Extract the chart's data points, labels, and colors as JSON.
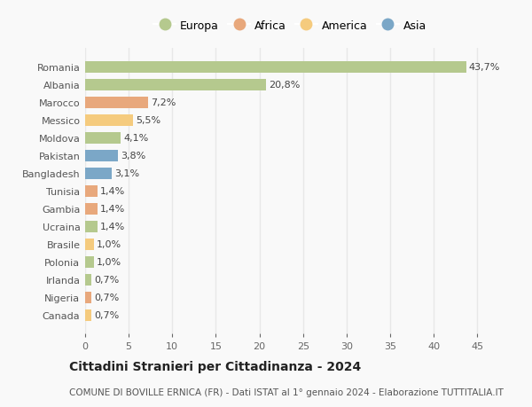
{
  "countries": [
    "Romania",
    "Albania",
    "Marocco",
    "Messico",
    "Moldova",
    "Pakistan",
    "Bangladesh",
    "Tunisia",
    "Gambia",
    "Ucraina",
    "Brasile",
    "Polonia",
    "Irlanda",
    "Nigeria",
    "Canada"
  ],
  "values": [
    43.7,
    20.8,
    7.2,
    5.5,
    4.1,
    3.8,
    3.1,
    1.4,
    1.4,
    1.4,
    1.0,
    1.0,
    0.7,
    0.7,
    0.7
  ],
  "labels": [
    "43,7%",
    "20,8%",
    "7,2%",
    "5,5%",
    "4,1%",
    "3,8%",
    "3,1%",
    "1,4%",
    "1,4%",
    "1,4%",
    "1,0%",
    "1,0%",
    "0,7%",
    "0,7%",
    "0,7%"
  ],
  "continents": [
    "Europa",
    "Europa",
    "Africa",
    "America",
    "Europa",
    "Asia",
    "Asia",
    "Africa",
    "Africa",
    "Europa",
    "America",
    "Europa",
    "Europa",
    "Africa",
    "America"
  ],
  "continent_colors": {
    "Europa": "#b5c98e",
    "Africa": "#e8a87c",
    "America": "#f5cb7e",
    "Asia": "#7ba7c7"
  },
  "legend_order": [
    "Europa",
    "Africa",
    "America",
    "Asia"
  ],
  "title": "Cittadini Stranieri per Cittadinanza - 2024",
  "subtitle": "COMUNE DI BOVILLE ERNICA (FR) - Dati ISTAT al 1° gennaio 2024 - Elaborazione TUTTITALIA.IT",
  "xlim": [
    0,
    47
  ],
  "xticks": [
    0,
    5,
    10,
    15,
    20,
    25,
    30,
    35,
    40,
    45
  ],
  "bg_color": "#f9f9f9",
  "grid_color": "#e8e8e8",
  "title_fontsize": 10,
  "subtitle_fontsize": 7.5,
  "label_fontsize": 8,
  "tick_fontsize": 8,
  "legend_fontsize": 9
}
